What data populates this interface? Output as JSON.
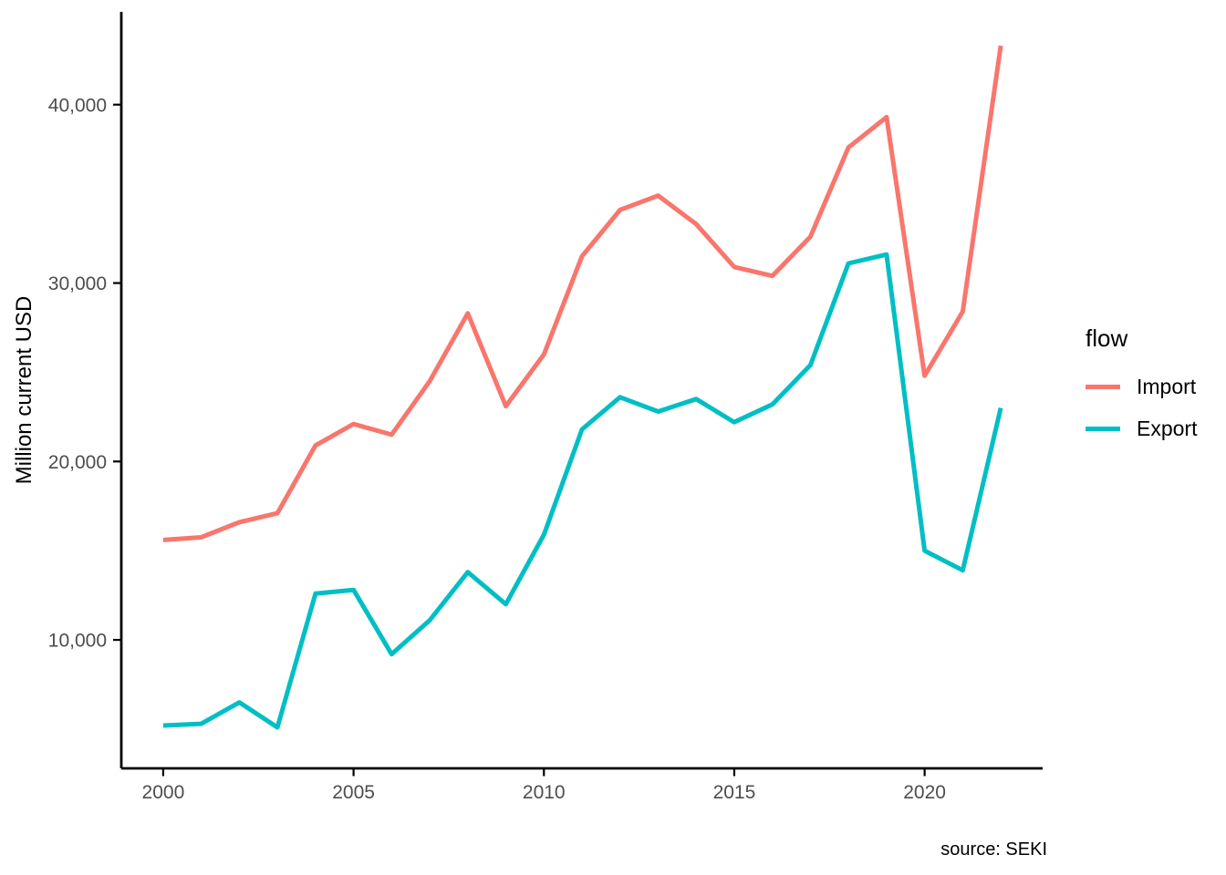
{
  "figure": {
    "ylabel": "Million current USD",
    "caption": "source: SEKI"
  },
  "legend": {
    "title": "flow",
    "items": [
      {
        "label": "Import",
        "color": "#F8766D"
      },
      {
        "label": "Export",
        "color": "#00BFC4"
      }
    ]
  },
  "chart_data": {
    "type": "line",
    "title": "",
    "xlabel": "",
    "ylabel": "Million current USD",
    "caption": "source: SEKI",
    "legend_title": "flow",
    "legend_position": "right",
    "grid": false,
    "background": "#ffffff",
    "axis_color": "#000000",
    "tick_label_color": "#4d4d4d",
    "x": [
      2000,
      2001,
      2002,
      2003,
      2004,
      2005,
      2006,
      2007,
      2008,
      2009,
      2010,
      2011,
      2012,
      2013,
      2014,
      2015,
      2016,
      2017,
      2018,
      2019,
      2020,
      2021,
      2022
    ],
    "series": [
      {
        "name": "Import",
        "color": "#F8766D",
        "values": [
          15600,
          15750,
          16600,
          17100,
          20900,
          22100,
          21500,
          24500,
          28300,
          23100,
          26000,
          31500,
          34100,
          34900,
          33300,
          30900,
          30400,
          32600,
          37600,
          39300,
          24800,
          28400,
          43300
        ]
      },
      {
        "name": "Export",
        "color": "#00BFC4",
        "values": [
          5200,
          5300,
          6500,
          5100,
          12600,
          12800,
          9200,
          11100,
          13800,
          12000,
          15900,
          21800,
          23600,
          22800,
          23500,
          22200,
          23200,
          25400,
          31100,
          31600,
          15000,
          13900,
          23000
        ]
      }
    ],
    "x_ticks": {
      "values": [
        2000,
        2005,
        2010,
        2015,
        2020
      ],
      "labels": [
        "2000",
        "2005",
        "2010",
        "2015",
        "2020"
      ]
    },
    "y_ticks": {
      "values": [
        10000,
        20000,
        30000,
        40000
      ],
      "labels": [
        "10,000",
        "20,000",
        "30,000",
        "40,000"
      ]
    },
    "xlim": [
      1998.9,
      2023.1
    ],
    "ylim": [
      2800,
      45200
    ]
  }
}
